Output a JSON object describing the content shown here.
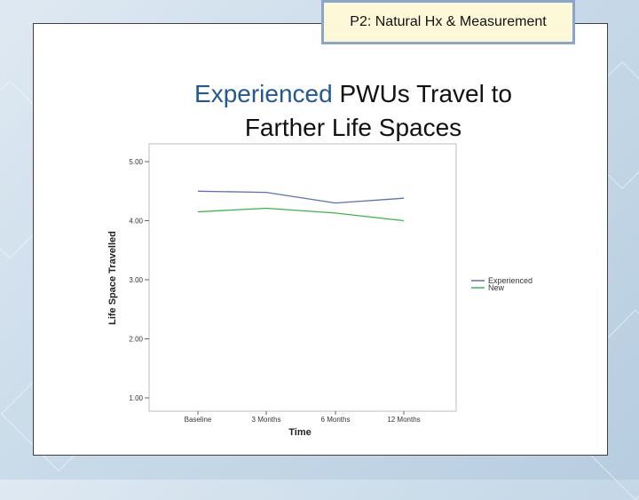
{
  "header_tag": "P2: Natural Hx & Measurement",
  "title": {
    "accent": "Experienced",
    "line1_rest": " PWUs Travel to",
    "line2": "Farther Life Spaces"
  },
  "colors": {
    "accent": "#24588f",
    "tag_bg": "#fdf9d8",
    "tag_border": "#8aa5c7"
  },
  "chart_data": {
    "type": "line",
    "categories": [
      "Baseline",
      "3 Months",
      "6 Months",
      "12 Months"
    ],
    "series": [
      {
        "name": "Experienced",
        "values": [
          4.5,
          4.48,
          4.3,
          4.38
        ],
        "color": "#5a72b5"
      },
      {
        "name": "New",
        "values": [
          4.15,
          4.21,
          4.13,
          4.0
        ],
        "color": "#3ab54a"
      }
    ],
    "yticks": [
      "1.00",
      "2.00",
      "3.00",
      "4.00",
      "5.00"
    ],
    "ylim": [
      1,
      5
    ],
    "xlabel": "Time",
    "ylabel": "Life Space Travelled",
    "grid": false,
    "legend": "right"
  }
}
